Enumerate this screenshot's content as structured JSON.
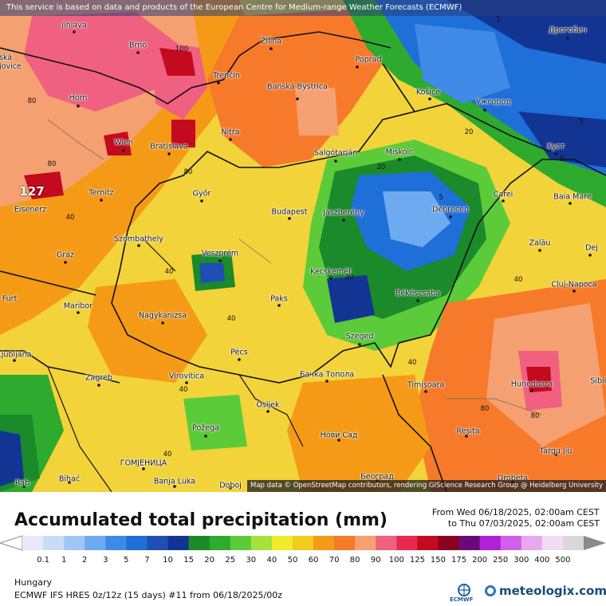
{
  "disclaimer": "This service is based on data and products of the European Centre for Medium-range Weather Forecasts (ECMWF)",
  "attribution": "Map data © OpenStreetMap contributors, rendering GIScience Research Group @ Heidelberg University",
  "title": "Accumulated total precipitation (mm)",
  "period": {
    "from": "From Wed 06/18/2025, 02:00am CEST",
    "to": "to Thu 07/03/2025, 02:00am CEST"
  },
  "region": "Hungary",
  "model_info": "ECMWF IFS HRES 0z/12z (15 days) #11 from  06/18/2025/00z",
  "brand": {
    "ecmwf": "ECMWF",
    "meteologix": "meteologix.com"
  },
  "colorbar": {
    "labels": [
      "0.1",
      "1",
      "2",
      "3",
      "5",
      "7",
      "10",
      "15",
      "20",
      "25",
      "30",
      "40",
      "50",
      "60",
      "70",
      "80",
      "90",
      "100",
      "125",
      "150",
      "175",
      "200",
      "250",
      "300",
      "400",
      "500"
    ],
    "colors": [
      "#e8e8f6",
      "#c9dcf7",
      "#9fc7f5",
      "#6eaaf0",
      "#3f8ae6",
      "#1e6fd8",
      "#1f4eb4",
      "#123594",
      "#1a8a2a",
      "#2eaa2e",
      "#5ccb3a",
      "#a6e23c",
      "#f0ec2c",
      "#f2cc1a",
      "#f59a16",
      "#f77a2a",
      "#f5a070",
      "#f06080",
      "#e8284e",
      "#c40a1e",
      "#8a0020",
      "#6a0a7a",
      "#b020d8",
      "#d060e8",
      "#e8a8f0",
      "#f0dcf4",
      "#d8d8d8"
    ]
  },
  "map": {
    "max_label": "127",
    "cities": [
      {
        "name": "Jihlava"
      },
      {
        "name": "Brno"
      },
      {
        "name": "Žilina"
      },
      {
        "name": "Poprad"
      },
      {
        "name": "Trenčín"
      },
      {
        "name": "Banská Bystrica"
      },
      {
        "name": "Košice"
      },
      {
        "name": "Ужгород"
      },
      {
        "name": "Дрогобич"
      },
      {
        "name": "Horn"
      },
      {
        "name": "Wien"
      },
      {
        "name": "Bratislava"
      },
      {
        "name": "Nitra"
      },
      {
        "name": "Salgótarján"
      },
      {
        "name": "Miskolc"
      },
      {
        "name": "Хуст"
      },
      {
        "name": "Ternitz"
      },
      {
        "name": "Győr"
      },
      {
        "name": "Eisenerz"
      },
      {
        "name": "Budapest"
      },
      {
        "name": "Jászberény"
      },
      {
        "name": "Debrecen"
      },
      {
        "name": "Carei"
      },
      {
        "name": "Baia Mare"
      },
      {
        "name": "Szombathely"
      },
      {
        "name": "Graz"
      },
      {
        "name": "Veszprém"
      },
      {
        "name": "Zalău"
      },
      {
        "name": "Dej"
      },
      {
        "name": "Kecskemét"
      },
      {
        "name": "Cluj-Napoca"
      },
      {
        "name": "Maribor"
      },
      {
        "name": "Paks"
      },
      {
        "name": "Békéscsaba"
      },
      {
        "name": "Nagykanizsa"
      },
      {
        "name": "Szeged"
      },
      {
        "name": "Pécs"
      },
      {
        "name": "Zagreb"
      },
      {
        "name": "Virovitica"
      },
      {
        "name": "Бачка Топола"
      },
      {
        "name": "Timișoara"
      },
      {
        "name": "Hunedoara"
      },
      {
        "name": "Osijek"
      },
      {
        "name": "Požega"
      },
      {
        "name": "Нови Сад"
      },
      {
        "name": "Reșița"
      },
      {
        "name": "Târgu Jiu"
      },
      {
        "name": "ГОМЈЕНИЦА"
      },
      {
        "name": "Bihać"
      },
      {
        "name": "Banja Luka"
      },
      {
        "name": "Doboj"
      },
      {
        "name": "Београд"
      },
      {
        "name": "Drobeta"
      },
      {
        "name": "Rab"
      },
      {
        "name": "Ljubljana"
      },
      {
        "name": "Furt"
      },
      {
        "name": "ská jovice"
      },
      {
        "name": "Sibiu"
      }
    ],
    "isolines": [
      "100",
      "80",
      "80",
      "80",
      "40",
      "40",
      "20",
      "5",
      "20",
      "5",
      "40",
      "40",
      "20",
      "40",
      "40",
      "5",
      "80",
      "80",
      "40",
      "5"
    ]
  }
}
